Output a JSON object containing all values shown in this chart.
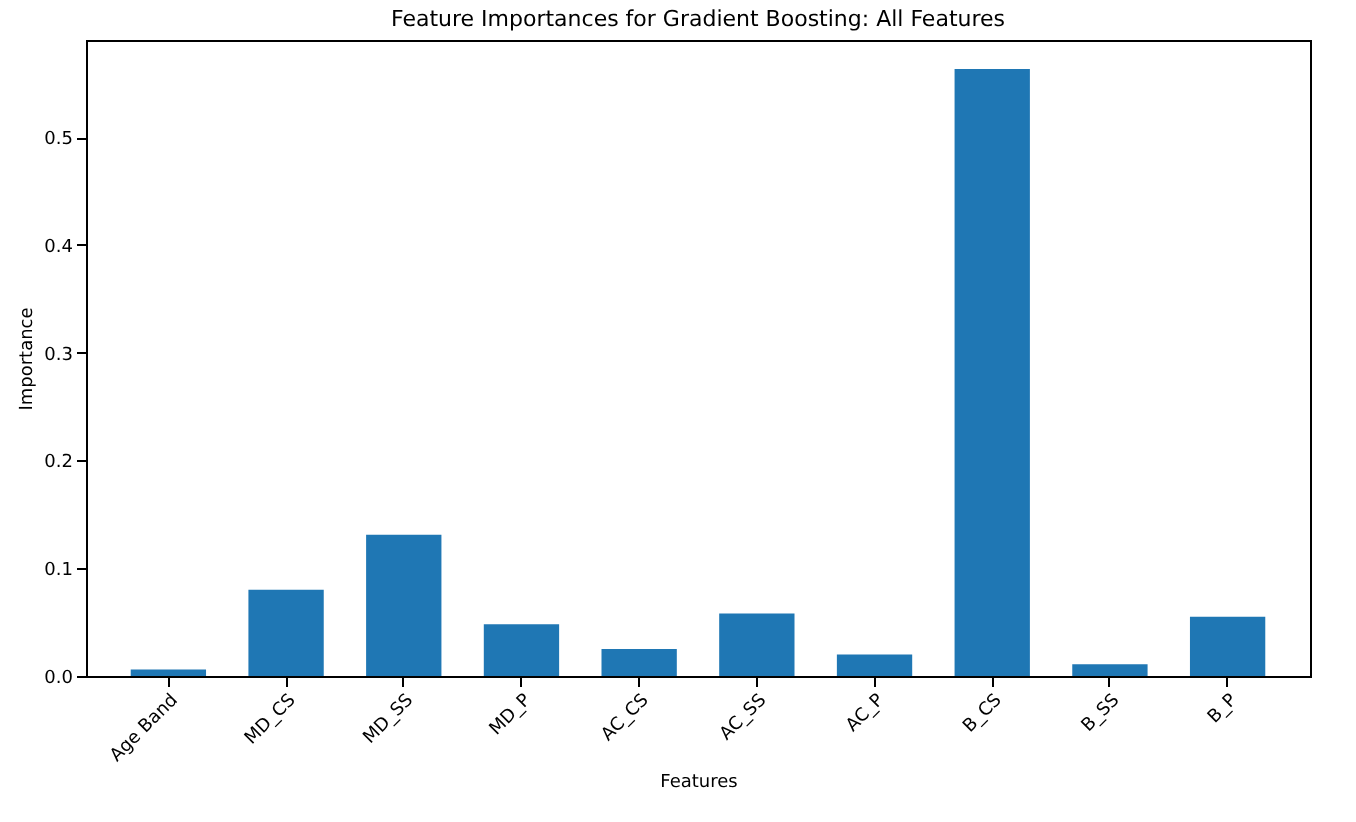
{
  "chart_data": {
    "type": "bar",
    "title": "Feature Importances for Gradient Boosting: All Features",
    "xlabel": "Features",
    "ylabel": "Importance",
    "categories": [
      "Age Band",
      "MD_CS",
      "MD_SS",
      "MD_P",
      "AC_CS",
      "AC_SS",
      "AC_P",
      "B_CS",
      "B_SS",
      "B_P"
    ],
    "values": [
      0.006,
      0.08,
      0.131,
      0.048,
      0.025,
      0.058,
      0.02,
      0.563,
      0.011,
      0.055
    ],
    "color": "#1f77b4",
    "ylim": [
      0,
      0.59
    ],
    "yticks": [
      {
        "value": 0,
        "label": "0.0"
      },
      0.1,
      0.2,
      0.3,
      0.4,
      0.5
    ],
    "grid": false
  }
}
